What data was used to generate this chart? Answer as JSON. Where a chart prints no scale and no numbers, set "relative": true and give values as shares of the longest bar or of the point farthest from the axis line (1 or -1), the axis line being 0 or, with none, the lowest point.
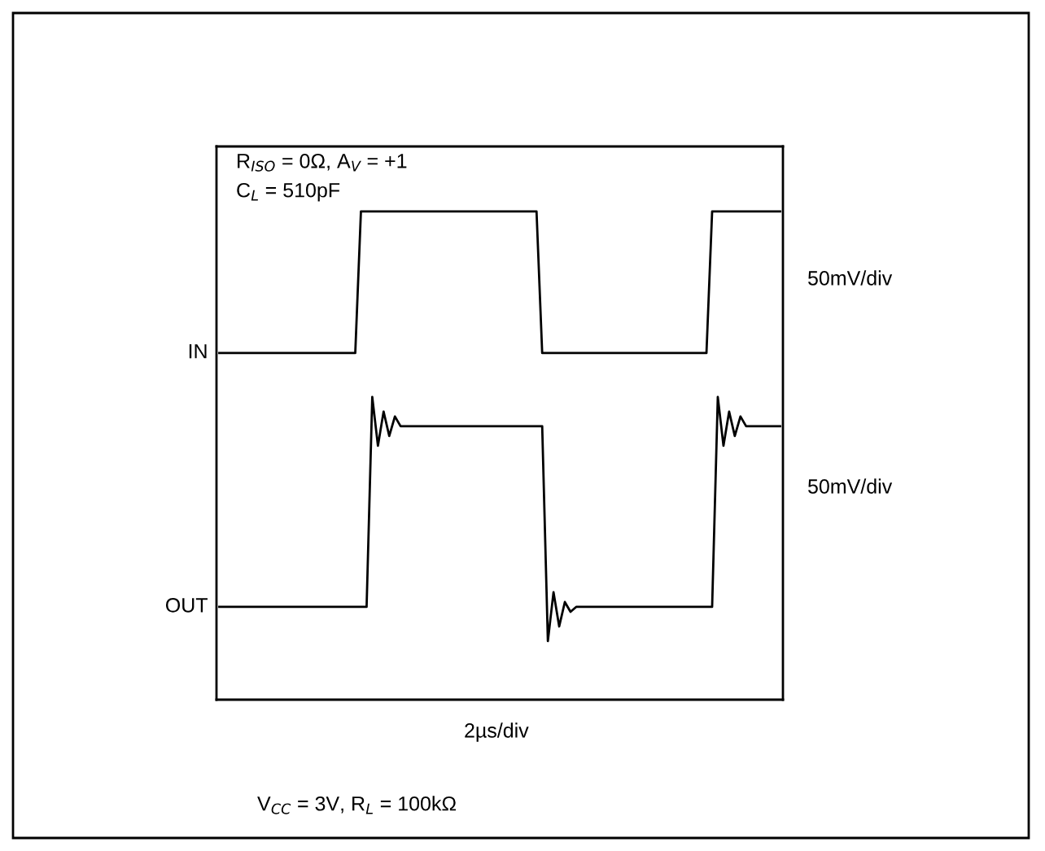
{
  "chart_data": {
    "type": "line",
    "relative": true,
    "categories": [
      null,
      null,
      null,
      null,
      null,
      null,
      null,
      null,
      null,
      null,
      null,
      null,
      null,
      null,
      null,
      null,
      null,
      null,
      null,
      null,
      null,
      null,
      null,
      null,
      null,
      null,
      null,
      null,
      null,
      null,
      null,
      null,
      null,
      null,
      null,
      null,
      null,
      null,
      null,
      null,
      null,
      null,
      null,
      null,
      null,
      null,
      null,
      null,
      null,
      null,
      null,
      null,
      null,
      null,
      null,
      null,
      null,
      null,
      null,
      null,
      null,
      null,
      null,
      null,
      null,
      null,
      null,
      null,
      null,
      null,
      null,
      null,
      null,
      null,
      null,
      null,
      null,
      null,
      null,
      null,
      null,
      null,
      null,
      null,
      null,
      null,
      null,
      null,
      null,
      null,
      null,
      null,
      null,
      null,
      null,
      null,
      null,
      null,
      null,
      null
    ],
    "series": [
      {
        "name": "IN",
        "color": "#000000",
        "values": [
          0.71,
          0.71,
          0.71,
          0.71,
          0.71,
          0.71,
          0.71,
          0.71,
          0.71,
          0.71,
          0.71,
          0.71,
          0.71,
          0.71,
          0.71,
          0.71,
          0.71,
          0.71,
          0.71,
          0.71,
          0.71,
          0.71,
          0.71,
          0.71,
          0.71,
          1.0,
          1.0,
          1.0,
          1.0,
          1.0,
          1.0,
          1.0,
          1.0,
          1.0,
          1.0,
          1.0,
          1.0,
          1.0,
          1.0,
          1.0,
          1.0,
          1.0,
          1.0,
          1.0,
          1.0,
          1.0,
          1.0,
          1.0,
          1.0,
          1.0,
          1.0,
          1.0,
          1.0,
          1.0,
          1.0,
          1.0,
          1.0,
          0.71,
          0.71,
          0.71,
          0.71,
          0.71,
          0.71,
          0.71,
          0.71,
          0.71,
          0.71,
          0.71,
          0.71,
          0.71,
          0.71,
          0.71,
          0.71,
          0.71,
          0.71,
          0.71,
          0.71,
          0.71,
          0.71,
          0.71,
          0.71,
          0.71,
          0.71,
          0.71,
          0.71,
          0.71,
          0.71,
          1.0,
          1.0,
          1.0,
          1.0,
          1.0,
          1.0,
          1.0,
          1.0,
          1.0,
          1.0,
          1.0,
          1.0,
          1.0
        ]
      },
      {
        "name": "OUT",
        "color": "#000000",
        "values": [
          0.19,
          0.19,
          0.19,
          0.19,
          0.19,
          0.19,
          0.19,
          0.19,
          0.19,
          0.19,
          0.19,
          0.19,
          0.19,
          0.19,
          0.19,
          0.19,
          0.19,
          0.19,
          0.19,
          0.19,
          0.19,
          0.19,
          0.19,
          0.19,
          0.19,
          0.19,
          0.19,
          0.62,
          0.52,
          0.59,
          0.54,
          0.58,
          0.56,
          0.56,
          0.56,
          0.56,
          0.56,
          0.56,
          0.56,
          0.56,
          0.56,
          0.56,
          0.56,
          0.56,
          0.56,
          0.56,
          0.56,
          0.56,
          0.56,
          0.56,
          0.56,
          0.56,
          0.56,
          0.56,
          0.56,
          0.56,
          0.56,
          0.56,
          0.12,
          0.22,
          0.15,
          0.2,
          0.18,
          0.19,
          0.19,
          0.19,
          0.19,
          0.19,
          0.19,
          0.19,
          0.19,
          0.19,
          0.19,
          0.19,
          0.19,
          0.19,
          0.19,
          0.19,
          0.19,
          0.19,
          0.19,
          0.19,
          0.19,
          0.19,
          0.19,
          0.19,
          0.19,
          0.19,
          0.62,
          0.52,
          0.59,
          0.54,
          0.58,
          0.56,
          0.56,
          0.56,
          0.56,
          0.56,
          0.56,
          0.56
        ]
      }
    ],
    "annotations": [
      "R$_{ISO}$ = 0Ω, A$_{V}$ = +1",
      "C$_{L}$ = 510pF",
      "50mV/div",
      "50mV/div",
      "2µs/div",
      "V$_{CC}$ = 3V, R$_{L}$ = 100kΩ"
    ]
  }
}
